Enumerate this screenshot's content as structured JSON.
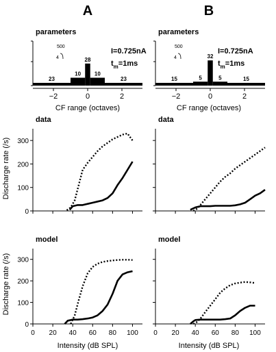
{
  "columns": [
    {
      "label": "A",
      "param_text": {
        "I": "I=0.725nA",
        "t": "t",
        "m": "m",
        "tv": "=1ms"
      }
    },
    {
      "label": "B",
      "param_text": {
        "I": "I=0.725nA",
        "t": "t",
        "m": "m",
        "tv": "=1ms"
      }
    }
  ],
  "text": {
    "parameters": "parameters",
    "data": "data",
    "model": "model",
    "cf_xlabel": "CF range (octaves)",
    "rate_ylabel": "Discharge rate (/s)",
    "intensity_xlabel": "Intensity (dB SPL)",
    "scale_top": "500",
    "scale_bottom": "4"
  },
  "chart_data": [
    {
      "panel": "A-parameters",
      "type": "bar",
      "title": "parameters",
      "xlabel": "CF range (octaves)",
      "ylabel": "",
      "xlim": [
        -3.2,
        3.2
      ],
      "xticks": [
        -2,
        0,
        2
      ],
      "bars": [
        {
          "x0": -3.2,
          "x1": -1.0,
          "value": 23,
          "label": "23"
        },
        {
          "x0": -1.0,
          "x1": -0.15,
          "value": 10,
          "label": "10"
        },
        {
          "x0": -0.15,
          "x1": 0.15,
          "value": 28,
          "label": "28"
        },
        {
          "x0": 0.15,
          "x1": 1.0,
          "value": 10,
          "label": "10"
        },
        {
          "x0": 1.0,
          "x1": 3.2,
          "value": 23,
          "label": "23"
        }
      ]
    },
    {
      "panel": "B-parameters",
      "type": "bar",
      "title": "parameters",
      "xlabel": "CF range (octaves)",
      "ylabel": "",
      "xlim": [
        -3.2,
        3.2
      ],
      "xticks": [
        -2,
        0,
        2
      ],
      "bars": [
        {
          "x0": -3.2,
          "x1": -1.0,
          "value": 15,
          "label": "15"
        },
        {
          "x0": -1.0,
          "x1": -0.15,
          "value": 5,
          "label": "5"
        },
        {
          "x0": -0.15,
          "x1": 0.15,
          "value": 32,
          "label": "32"
        },
        {
          "x0": 0.15,
          "x1": 1.0,
          "value": 5,
          "label": "5"
        },
        {
          "x0": 1.0,
          "x1": 3.2,
          "value": 15,
          "label": "15"
        }
      ]
    },
    {
      "panel": "A-data",
      "type": "line",
      "title": "data",
      "xlabel": "",
      "ylabel": "Discharge rate (/s)",
      "xlim": [
        0,
        110
      ],
      "ylim": [
        0,
        350
      ],
      "yticks": [
        0,
        100,
        200,
        300
      ],
      "series": [
        {
          "style": "dotted",
          "x": [
            34,
            38,
            42,
            46,
            50,
            55,
            60,
            65,
            70,
            75,
            80,
            85,
            90,
            95,
            100
          ],
          "y": [
            3,
            15,
            45,
            110,
            175,
            205,
            230,
            255,
            275,
            290,
            305,
            315,
            325,
            330,
            300
          ]
        },
        {
          "style": "solid",
          "x": [
            37,
            40,
            45,
            50,
            55,
            60,
            65,
            70,
            75,
            80,
            85,
            90,
            95,
            100
          ],
          "y": [
            5,
            20,
            25,
            25,
            30,
            35,
            40,
            45,
            55,
            75,
            110,
            140,
            175,
            210
          ]
        }
      ]
    },
    {
      "panel": "B-data",
      "type": "line",
      "title": "data",
      "xlabel": "",
      "ylabel": "",
      "xlim": [
        0,
        110
      ],
      "ylim": [
        0,
        350
      ],
      "yticks": [
        0,
        100,
        200,
        300
      ],
      "series": [
        {
          "style": "dotted",
          "x": [
            38,
            42,
            46,
            50,
            55,
            60,
            65,
            70,
            75,
            80,
            85,
            90,
            95,
            100,
            105,
            110
          ],
          "y": [
            0,
            10,
            30,
            50,
            75,
            100,
            125,
            145,
            160,
            180,
            195,
            210,
            225,
            240,
            255,
            270
          ]
        },
        {
          "style": "solid",
          "x": [
            35,
            40,
            45,
            50,
            55,
            60,
            65,
            70,
            75,
            80,
            85,
            90,
            95,
            100,
            105,
            110
          ],
          "y": [
            5,
            15,
            20,
            20,
            20,
            22,
            22,
            22,
            22,
            24,
            28,
            35,
            50,
            65,
            75,
            90
          ]
        }
      ]
    },
    {
      "panel": "A-model",
      "type": "line",
      "title": "model",
      "xlabel": "Intensity (dB SPL)",
      "ylabel": "Discharge rate (/s)",
      "xlim": [
        0,
        110
      ],
      "ylim": [
        0,
        350
      ],
      "yticks": [
        0,
        100,
        200,
        300
      ],
      "xticks": [
        0,
        20,
        40,
        60,
        80,
        100
      ],
      "series": [
        {
          "style": "dotted",
          "x": [
            38,
            42,
            46,
            50,
            55,
            60,
            65,
            70,
            75,
            80,
            85,
            90,
            95,
            100
          ],
          "y": [
            0,
            40,
            110,
            175,
            235,
            265,
            280,
            288,
            292,
            295,
            297,
            298,
            298,
            297
          ]
        },
        {
          "style": "solid",
          "x": [
            32,
            35,
            40,
            45,
            50,
            55,
            60,
            65,
            70,
            75,
            80,
            85,
            90,
            95,
            100
          ],
          "y": [
            0,
            15,
            20,
            20,
            22,
            25,
            30,
            40,
            60,
            90,
            140,
            200,
            230,
            240,
            245
          ]
        }
      ]
    },
    {
      "panel": "B-model",
      "type": "line",
      "title": "model",
      "xlabel": "Intensity (dB SPL)",
      "ylabel": "",
      "xlim": [
        0,
        110
      ],
      "ylim": [
        0,
        350
      ],
      "yticks": [
        0,
        100,
        200,
        300
      ],
      "xticks": [
        0,
        20,
        40,
        60,
        80,
        100
      ],
      "series": [
        {
          "style": "dotted",
          "x": [
            38,
            42,
            46,
            50,
            55,
            60,
            65,
            70,
            75,
            80,
            85,
            90,
            95,
            100
          ],
          "y": [
            0,
            10,
            30,
            55,
            85,
            115,
            145,
            165,
            180,
            188,
            192,
            195,
            193,
            190
          ]
        },
        {
          "style": "solid",
          "x": [
            35,
            38,
            40,
            45,
            50,
            55,
            60,
            65,
            70,
            75,
            80,
            85,
            90,
            95,
            100
          ],
          "y": [
            0,
            12,
            18,
            20,
            20,
            20,
            20,
            20,
            22,
            25,
            40,
            60,
            75,
            85,
            85
          ]
        }
      ]
    }
  ]
}
